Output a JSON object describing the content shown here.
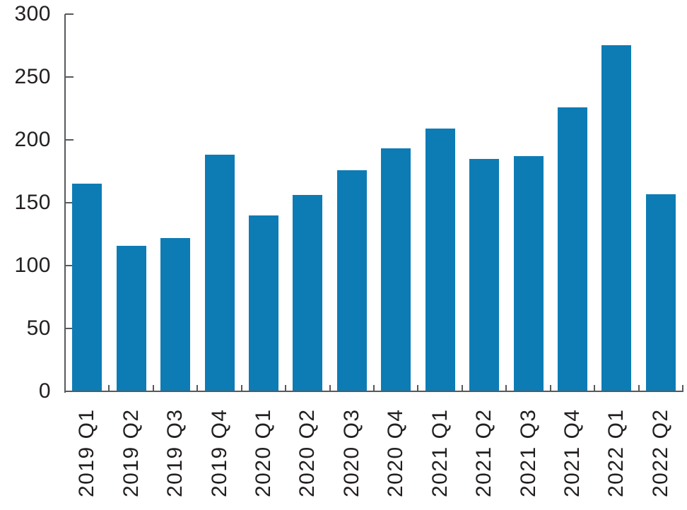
{
  "chart_data": {
    "type": "bar",
    "title": "",
    "xlabel": "",
    "ylabel": "",
    "categories": [
      "2019 Q1",
      "2019 Q2",
      "2019 Q3",
      "2019 Q4",
      "2020 Q1",
      "2020 Q2",
      "2020 Q3",
      "2020 Q4",
      "2021 Q1",
      "2021 Q2",
      "2021 Q3",
      "2021 Q4",
      "2022 Q1",
      "2022 Q2"
    ],
    "values": [
      165,
      116,
      122,
      188,
      140,
      156,
      176,
      193,
      209,
      185,
      187,
      226,
      275,
      157
    ],
    "ylim": [
      0,
      300
    ],
    "yticks": [
      0,
      50,
      100,
      150,
      200,
      250,
      300
    ],
    "grid": false,
    "legend": false,
    "tick_direction": "in",
    "bar_color": "#0d7cb5",
    "axis_color": "#58595b",
    "label_color": "#231f20"
  }
}
